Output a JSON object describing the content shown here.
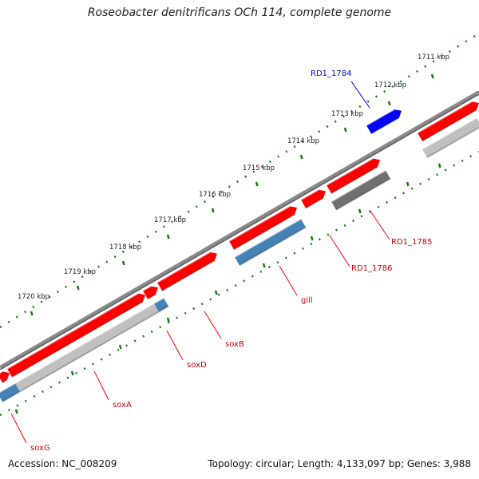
{
  "title": "Roseobacter denitrificans OCh 114, complete genome",
  "footer": {
    "accession": "Accession: NC_008209",
    "summary": "Topology: circular; Length: 4,133,097 bp; Genes: 3,988"
  },
  "ticks": [
    {
      "label": "1711 kbp"
    },
    {
      "label": "1712 kbp"
    },
    {
      "label": "1713 kbp"
    },
    {
      "label": "1714 kbp"
    },
    {
      "label": "1715 kbp"
    },
    {
      "label": "1716 kbp"
    },
    {
      "label": "1717 kbp"
    },
    {
      "label": "1718 kbp"
    },
    {
      "label": "1719 kbp"
    },
    {
      "label": "1720 kbp"
    }
  ],
  "genes": [
    {
      "label": "RD1_1784",
      "color": "#0000ff"
    },
    {
      "label": "RD1_1785",
      "color": "#ff0000"
    },
    {
      "label": "RD1_1786",
      "color": "#ff0000"
    },
    {
      "label": "gill",
      "color": "#ff0000"
    },
    {
      "label": "soxB",
      "color": "#ff0000"
    },
    {
      "label": "soxD",
      "color": "#ff0000"
    },
    {
      "label": "soxA",
      "color": "#ff0000"
    },
    {
      "label": "soxG",
      "color": "#ff0000"
    }
  ],
  "colors": {
    "forward": "#ff0000",
    "reverse_blue": "#4682b4",
    "reverse_gray": "#c0c0c0",
    "reverse_dark": "#707070",
    "highlight": "#0000ff",
    "backbone": "#808080",
    "ticks": "#1a7a1a"
  }
}
